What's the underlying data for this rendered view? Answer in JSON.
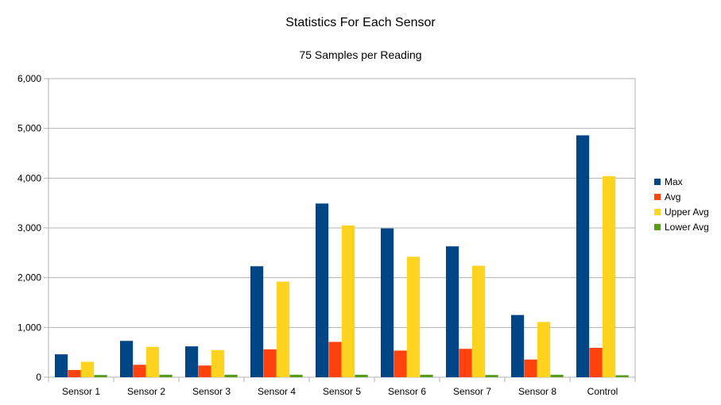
{
  "chart_data": {
    "type": "bar",
    "title": "Statistics For Each Sensor",
    "subtitle": "75 Samples per Reading",
    "xlabel": "",
    "ylabel": "",
    "categories": [
      "Sensor 1",
      "Sensor 2",
      "Sensor 3",
      "Sensor 4",
      "Sensor 5",
      "Sensor 6",
      "Sensor 7",
      "Sensor 8",
      "Control"
    ],
    "series": [
      {
        "name": "Max",
        "color": "#004586",
        "values": [
          460,
          730,
          620,
          2230,
          3490,
          2990,
          2630,
          1250,
          4860
        ]
      },
      {
        "name": "Avg",
        "color": "#ff420e",
        "values": [
          145,
          250,
          235,
          560,
          710,
          535,
          570,
          355,
          590
        ]
      },
      {
        "name": "Upper Avg",
        "color": "#ffd320",
        "values": [
          310,
          610,
          545,
          1920,
          3050,
          2420,
          2240,
          1110,
          4040
        ]
      },
      {
        "name": "Lower Avg",
        "color": "#579d1c",
        "values": [
          45,
          50,
          50,
          50,
          50,
          50,
          45,
          50,
          40
        ]
      }
    ],
    "ylim": [
      0,
      6000
    ],
    "yticks": [
      0,
      1000,
      2000,
      3000,
      4000,
      5000,
      6000
    ],
    "ytick_labels": [
      "0",
      "1,000",
      "2,000",
      "3,000",
      "4,000",
      "5,000",
      "6,000"
    ],
    "grid": true,
    "legend_position": "right"
  }
}
